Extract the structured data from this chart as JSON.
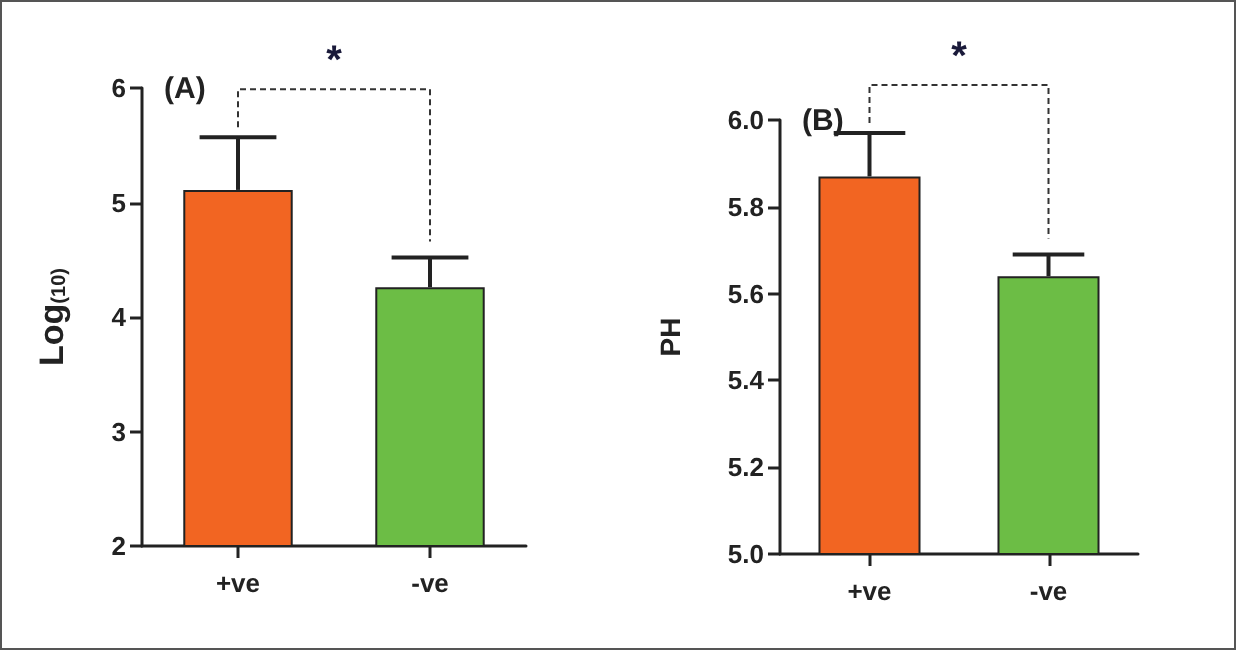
{
  "chart_data": [
    {
      "type": "bar",
      "title": "(A)",
      "ylabel": "Log$_{(10)}$",
      "categories": [
        "+ve",
        "-ve"
      ],
      "values": [
        5.11,
        4.26
      ],
      "errors": [
        0.46,
        0.26
      ],
      "colors": [
        "#f26522",
        "#6cbd45"
      ],
      "ylim": [
        2,
        6
      ],
      "yticks": [
        2,
        3,
        4,
        5,
        6
      ],
      "grid": false,
      "annotations": [
        "*"
      ]
    },
    {
      "type": "bar",
      "title": "(B)",
      "ylabel": "PH",
      "categories": [
        "+ve",
        "-ve"
      ],
      "values": [
        5.87,
        5.64
      ],
      "errors": [
        0.1,
        0.05
      ],
      "colors": [
        "#f26522",
        "#6cbd45"
      ],
      "ylim": [
        5,
        6
      ],
      "yticks": [
        {
          "value": 5,
          "label": "5.0"
        },
        {
          "value": 5.2,
          "label": "5.2"
        },
        {
          "value": 5.4,
          "label": "5.4"
        },
        {
          "value": 5.6,
          "label": "5.6"
        },
        {
          "value": 5.8,
          "label": "5.8"
        },
        {
          "value": 6,
          "label": "6.0"
        }
      ],
      "grid": false,
      "annotations": [
        "*"
      ]
    }
  ]
}
